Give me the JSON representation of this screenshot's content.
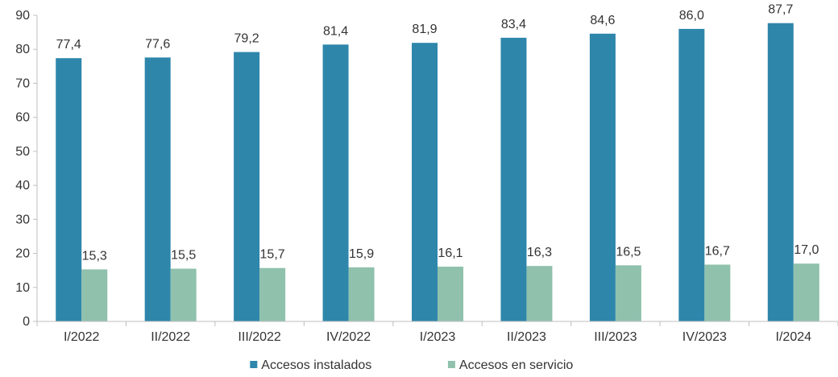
{
  "chart_data": {
    "type": "bar",
    "categories": [
      "I/2022",
      "II/2022",
      "III/2022",
      "IV/2022",
      "I/2023",
      "II/2023",
      "III/2023",
      "IV/2023",
      "I/2024"
    ],
    "series": [
      {
        "name": "Accesos instalados",
        "color": "#2e86ab",
        "values": [
          77.4,
          77.6,
          79.2,
          81.4,
          81.9,
          83.4,
          84.6,
          86.0,
          87.7
        ],
        "value_labels": [
          "77,4",
          "77,6",
          "79,2",
          "81,4",
          "81,9",
          "83,4",
          "84,6",
          "86,0",
          "87,7"
        ]
      },
      {
        "name": "Accesos en servicio",
        "color": "#8fc1ad",
        "values": [
          15.3,
          15.5,
          15.7,
          15.9,
          16.1,
          16.3,
          16.5,
          16.7,
          17.0
        ],
        "value_labels": [
          "15,3",
          "15,5",
          "15,7",
          "15,9",
          "16,1",
          "16,3",
          "16,5",
          "16,7",
          "17,0"
        ]
      }
    ],
    "ylim": [
      0,
      90
    ],
    "yticks": [
      0,
      10,
      20,
      30,
      40,
      50,
      60,
      70,
      80,
      90
    ],
    "title": "",
    "xlabel": "",
    "ylabel": "",
    "grid": false,
    "legend_position": "bottom-center"
  }
}
